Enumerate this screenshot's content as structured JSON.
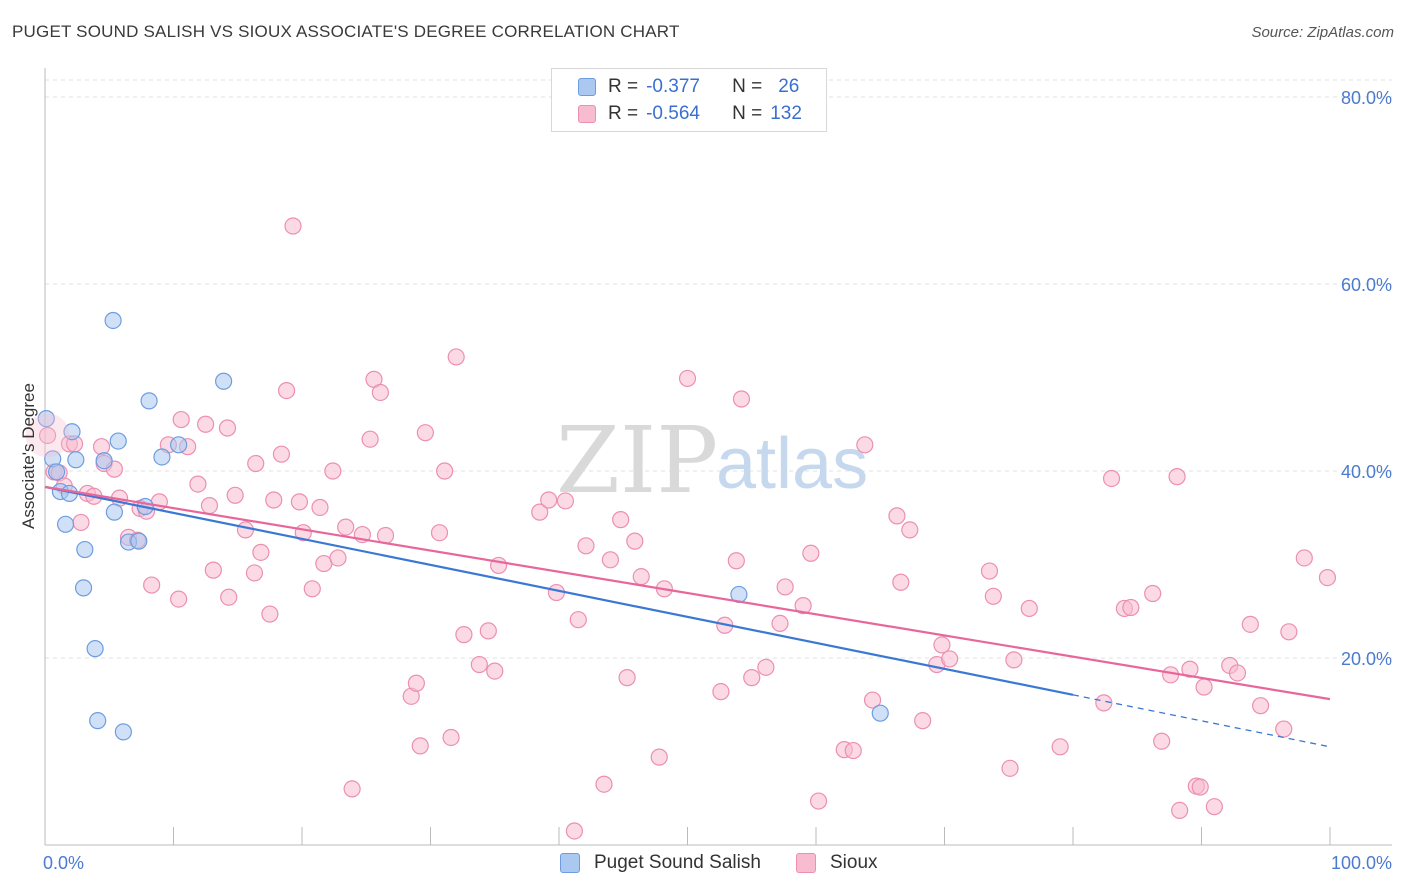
{
  "header": {
    "title": "PUGET SOUND SALISH VS SIOUX ASSOCIATE'S DEGREE CORRELATION CHART",
    "source": "Source: ZipAtlas.com"
  },
  "legend": {
    "rows": [
      {
        "r_label": "R =",
        "r_value": "-0.377",
        "n_label": "N =",
        "n_value": "26"
      },
      {
        "r_label": "R =",
        "r_value": "-0.564",
        "n_label": "N =",
        "n_value": "132"
      }
    ]
  },
  "bottom_legend": [
    "Puget Sound Salish",
    "Sioux"
  ],
  "watermark": {
    "zip": "ZIP",
    "atlas": "atlas"
  },
  "colors": {
    "salish_fill": "#aac8f0",
    "salish_stroke": "#6d9de0",
    "salish_line": "#3a78d4",
    "sioux_fill": "#f7bcd0",
    "sioux_stroke": "#ec8fb0",
    "sioux_line": "#e8679a",
    "grid": "#e2e2e2",
    "tick_text": "#4a7bd0"
  },
  "chart_data": {
    "type": "scatter",
    "title": "PUGET SOUND SALISH VS SIOUX ASSOCIATE'S DEGREE CORRELATION CHART",
    "xlabel": "",
    "ylabel": "Associate's Degree",
    "xlim": [
      0,
      100
    ],
    "ylim": [
      0,
      80
    ],
    "x_tick_labels": [
      "0.0%",
      "100.0%"
    ],
    "y_ticks": [
      20,
      40,
      60,
      80
    ],
    "y_tick_labels": [
      "20.0%",
      "40.0%",
      "60.0%",
      "80.0%"
    ],
    "grid": true,
    "series": [
      {
        "name": "Puget Sound Salish",
        "points": [
          [
            0.1,
            45.6
          ],
          [
            0.6,
            41.3
          ],
          [
            0.9,
            39.9
          ],
          [
            1.2,
            37.8
          ],
          [
            1.6,
            34.3
          ],
          [
            1.9,
            37.6
          ],
          [
            2.1,
            44.2
          ],
          [
            2.4,
            41.2
          ],
          [
            3.0,
            27.5
          ],
          [
            3.1,
            31.6
          ],
          [
            3.9,
            21.0
          ],
          [
            4.1,
            13.3
          ],
          [
            4.6,
            41.1
          ],
          [
            5.3,
            56.1
          ],
          [
            5.4,
            35.6
          ],
          [
            5.7,
            43.2
          ],
          [
            6.1,
            12.1
          ],
          [
            6.5,
            32.4
          ],
          [
            7.3,
            32.5
          ],
          [
            7.8,
            36.2
          ],
          [
            8.1,
            47.5
          ],
          [
            9.1,
            41.5
          ],
          [
            10.4,
            42.8
          ],
          [
            13.9,
            49.6
          ],
          [
            54.0,
            26.8
          ],
          [
            65.0,
            14.1
          ]
        ],
        "trend": {
          "x0": 0,
          "y0": 38.3,
          "x1": 100,
          "y1": 10.5,
          "solid_until_x": 80
        }
      },
      {
        "name": "Sioux",
        "points": [
          [
            0.2,
            43.8
          ],
          [
            0.7,
            39.9
          ],
          [
            1.1,
            39.8
          ],
          [
            1.5,
            38.4
          ],
          [
            1.9,
            42.9
          ],
          [
            2.3,
            42.9
          ],
          [
            2.8,
            34.5
          ],
          [
            3.3,
            37.6
          ],
          [
            3.8,
            37.3
          ],
          [
            4.4,
            42.6
          ],
          [
            4.6,
            40.8
          ],
          [
            5.4,
            40.2
          ],
          [
            5.8,
            37.1
          ],
          [
            6.5,
            32.9
          ],
          [
            7.2,
            32.6
          ],
          [
            7.4,
            36.0
          ],
          [
            7.9,
            35.7
          ],
          [
            8.3,
            27.8
          ],
          [
            8.9,
            36.7
          ],
          [
            9.6,
            42.8
          ],
          [
            10.4,
            26.3
          ],
          [
            10.6,
            45.5
          ],
          [
            11.1,
            42.6
          ],
          [
            11.9,
            38.6
          ],
          [
            12.5,
            45.0
          ],
          [
            12.8,
            36.3
          ],
          [
            13.1,
            29.4
          ],
          [
            14.2,
            44.6
          ],
          [
            14.3,
            26.5
          ],
          [
            14.8,
            37.4
          ],
          [
            15.6,
            33.7
          ],
          [
            16.3,
            29.1
          ],
          [
            16.4,
            40.8
          ],
          [
            16.8,
            31.3
          ],
          [
            17.5,
            24.7
          ],
          [
            17.8,
            36.9
          ],
          [
            18.4,
            41.8
          ],
          [
            18.8,
            48.6
          ],
          [
            19.3,
            66.2
          ],
          [
            19.8,
            36.7
          ],
          [
            20.1,
            33.4
          ],
          [
            20.8,
            27.4
          ],
          [
            21.4,
            36.1
          ],
          [
            21.7,
            30.1
          ],
          [
            22.4,
            40.0
          ],
          [
            22.8,
            30.7
          ],
          [
            23.4,
            34.0
          ],
          [
            23.9,
            6.0
          ],
          [
            24.7,
            33.2
          ],
          [
            25.3,
            43.4
          ],
          [
            25.6,
            49.8
          ],
          [
            26.1,
            48.4
          ],
          [
            26.5,
            33.1
          ],
          [
            28.5,
            15.9
          ],
          [
            28.9,
            17.3
          ],
          [
            29.2,
            10.6
          ],
          [
            29.6,
            44.1
          ],
          [
            30.7,
            33.4
          ],
          [
            31.1,
            40.0
          ],
          [
            31.6,
            11.5
          ],
          [
            32.0,
            52.2
          ],
          [
            32.6,
            22.5
          ],
          [
            33.8,
            19.3
          ],
          [
            34.5,
            22.9
          ],
          [
            35.0,
            18.6
          ],
          [
            35.3,
            29.9
          ],
          [
            38.5,
            35.6
          ],
          [
            39.2,
            36.9
          ],
          [
            39.8,
            27.0
          ],
          [
            40.5,
            36.8
          ],
          [
            41.2,
            1.5
          ],
          [
            41.5,
            24.1
          ],
          [
            42.1,
            32.0
          ],
          [
            43.5,
            6.5
          ],
          [
            44.0,
            30.5
          ],
          [
            44.8,
            34.8
          ],
          [
            45.3,
            17.9
          ],
          [
            45.9,
            32.5
          ],
          [
            46.4,
            28.7
          ],
          [
            47.8,
            9.4
          ],
          [
            48.2,
            27.4
          ],
          [
            50.0,
            49.9
          ],
          [
            52.6,
            16.4
          ],
          [
            52.9,
            23.5
          ],
          [
            53.8,
            30.4
          ],
          [
            54.2,
            47.7
          ],
          [
            55.0,
            17.9
          ],
          [
            56.1,
            19.0
          ],
          [
            57.2,
            23.7
          ],
          [
            57.6,
            27.6
          ],
          [
            59.0,
            25.6
          ],
          [
            59.6,
            31.2
          ],
          [
            60.2,
            4.7
          ],
          [
            62.2,
            10.2
          ],
          [
            62.9,
            10.1
          ],
          [
            63.8,
            42.8
          ],
          [
            64.4,
            15.5
          ],
          [
            66.3,
            35.2
          ],
          [
            66.6,
            28.1
          ],
          [
            67.3,
            33.7
          ],
          [
            68.3,
            13.3
          ],
          [
            69.4,
            19.3
          ],
          [
            69.8,
            21.4
          ],
          [
            70.4,
            19.9
          ],
          [
            73.5,
            29.3
          ],
          [
            73.8,
            26.6
          ],
          [
            75.1,
            8.2
          ],
          [
            75.4,
            19.8
          ],
          [
            76.6,
            25.3
          ],
          [
            79.0,
            10.5
          ],
          [
            82.4,
            15.2
          ],
          [
            83.0,
            39.2
          ],
          [
            84.0,
            25.3
          ],
          [
            84.5,
            25.4
          ],
          [
            86.2,
            26.9
          ],
          [
            86.9,
            11.1
          ],
          [
            87.6,
            18.2
          ],
          [
            88.1,
            39.4
          ],
          [
            88.3,
            3.7
          ],
          [
            89.1,
            18.8
          ],
          [
            89.6,
            6.3
          ],
          [
            89.9,
            6.2
          ],
          [
            90.2,
            16.9
          ],
          [
            91.0,
            4.1
          ],
          [
            92.2,
            19.2
          ],
          [
            92.8,
            18.4
          ],
          [
            93.8,
            23.6
          ],
          [
            94.6,
            14.9
          ],
          [
            96.4,
            12.4
          ],
          [
            96.8,
            22.8
          ],
          [
            98.0,
            30.7
          ],
          [
            99.8,
            28.6
          ]
        ],
        "trend": {
          "x0": 0,
          "y0": 38.3,
          "x1": 100,
          "y1": 15.6
        }
      }
    ]
  }
}
